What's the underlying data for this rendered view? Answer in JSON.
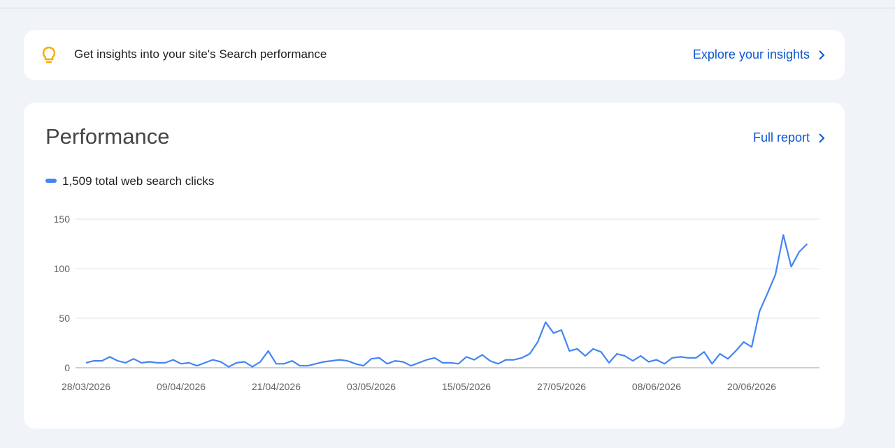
{
  "banner": {
    "text": "Get insights into your site's Search performance",
    "link": "Explore your insights"
  },
  "performance": {
    "title": "Performance",
    "link": "Full report"
  },
  "chart_data": {
    "type": "line",
    "categories": [
      "28/03/2026",
      null,
      null,
      null,
      null,
      null,
      null,
      null,
      null,
      null,
      null,
      null,
      "09/04/2026",
      null,
      null,
      null,
      null,
      null,
      null,
      null,
      null,
      null,
      null,
      null,
      "21/04/2026",
      null,
      null,
      null,
      null,
      null,
      null,
      null,
      null,
      null,
      null,
      null,
      "03/05/2026",
      null,
      null,
      null,
      null,
      null,
      null,
      null,
      null,
      null,
      null,
      null,
      "15/05/2026",
      null,
      null,
      null,
      null,
      null,
      null,
      null,
      null,
      null,
      null,
      null,
      "27/05/2026",
      null,
      null,
      null,
      null,
      null,
      null,
      null,
      null,
      null,
      null,
      null,
      "08/06/2026",
      null,
      null,
      null,
      null,
      null,
      null,
      null,
      null,
      null,
      null,
      null,
      "20/06/2026",
      null,
      null,
      null,
      null,
      null,
      null,
      null
    ],
    "series": [
      {
        "name": "1,509 total web search clicks",
        "color": "#4285f4",
        "values": [
          5,
          7,
          7,
          11,
          7,
          5,
          9,
          5,
          6,
          5,
          5,
          8,
          4,
          5,
          2,
          5,
          8,
          6,
          1,
          5,
          6,
          1,
          6,
          17,
          4,
          4,
          7,
          2,
          2,
          4,
          6,
          7,
          8,
          7,
          4,
          2,
          9,
          10,
          4,
          7,
          6,
          2,
          5,
          8,
          10,
          5,
          5,
          4,
          11,
          8,
          13,
          7,
          4,
          8,
          8,
          10,
          14,
          26,
          46,
          35,
          38,
          17,
          19,
          12,
          19,
          16,
          5,
          14,
          12,
          7,
          12,
          6,
          8,
          4,
          10,
          11,
          10,
          10,
          16,
          4,
          14,
          9,
          17,
          26,
          21,
          57,
          75,
          94,
          134,
          102,
          117,
          125
        ]
      }
    ],
    "ylim": [
      0,
      150
    ],
    "yticks": [
      0,
      50,
      100,
      150
    ],
    "grid": true
  }
}
